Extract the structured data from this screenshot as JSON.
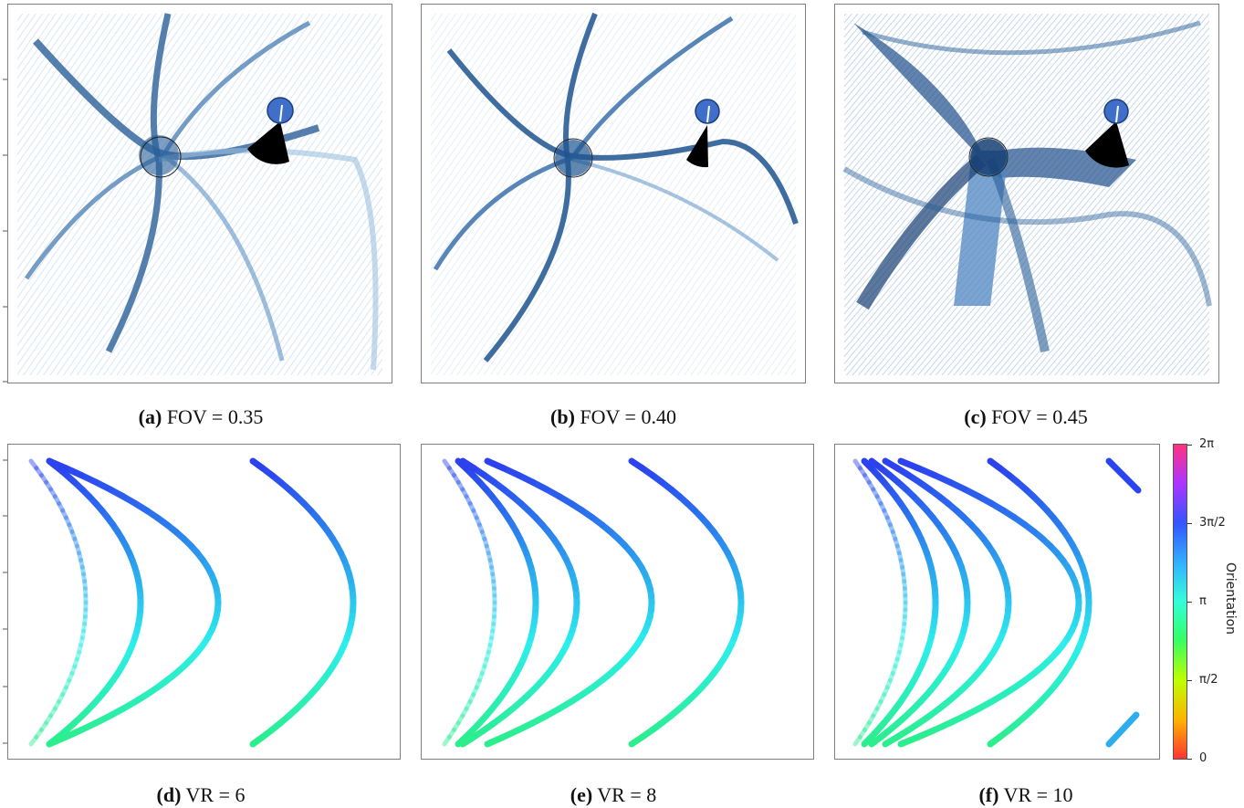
{
  "top_panels": [
    {
      "letter": "(a)",
      "text": " FOV = 0.35"
    },
    {
      "letter": "(b)",
      "text": " FOV = 0.40"
    },
    {
      "letter": "(c)",
      "text": " FOV = 0.45"
    }
  ],
  "bottom_panels": [
    {
      "letter": "(d)",
      "text": " VR = 6",
      "vr": 6
    },
    {
      "letter": "(e)",
      "text": " VR = 8",
      "vr": 8
    },
    {
      "letter": "(f)",
      "text": " VR = 10",
      "vr": 10
    }
  ],
  "colorbar": {
    "label": "Orientation",
    "ticks": [
      "0",
      "π/2",
      "π",
      "3π/2",
      "2π"
    ]
  },
  "colors": {
    "density_dark": "#0b3c78",
    "density_light": "#cfe0f0",
    "agent": "#3f6fc8"
  }
}
